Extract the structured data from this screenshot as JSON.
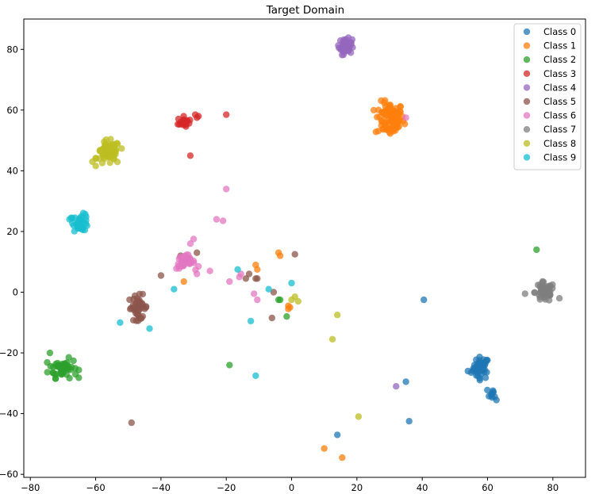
{
  "chart_data": {
    "type": "scatter",
    "title": "Target Domain",
    "xlabel": "",
    "ylabel": "",
    "xlim": [
      -82,
      90
    ],
    "ylim": [
      -61,
      90
    ],
    "xticks": [
      -80,
      -60,
      -40,
      -20,
      0,
      20,
      40,
      60,
      80
    ],
    "yticks": [
      -60,
      -40,
      -20,
      0,
      20,
      40,
      60,
      80
    ],
    "xtick_labels": [
      "−80",
      "−60",
      "−40",
      "−20",
      "0",
      "20",
      "40",
      "60",
      "80"
    ],
    "ytick_labels": [
      "−60",
      "−40",
      "−20",
      "0",
      "20",
      "40",
      "60",
      "80"
    ],
    "grid": false,
    "legend_position": "top-right",
    "series": [
      {
        "name": "Class 0",
        "color": "#1f77b4",
        "clusters": [
          {
            "cx": 58,
            "cy": -25,
            "sx": 1.2,
            "sy": 1.8,
            "n": 45
          },
          {
            "cx": 62,
            "cy": -33.5,
            "sx": 1.0,
            "sy": 1.0,
            "n": 10
          }
        ],
        "points": [
          [
            54,
            -26
          ],
          [
            55,
            -26.5
          ],
          [
            40.5,
            -2.5
          ],
          [
            35,
            -29.5
          ],
          [
            36,
            -42.5
          ],
          [
            14,
            -47
          ]
        ]
      },
      {
        "name": "Class 1",
        "color": "#ff7f0e",
        "clusters": [
          {
            "cx": 30,
            "cy": 57,
            "sx": 2.2,
            "sy": 2.8,
            "n": 90
          }
        ],
        "points": [
          [
            -33,
            3.5
          ],
          [
            -11,
            9
          ],
          [
            -10.5,
            7.5
          ],
          [
            -4,
            13
          ],
          [
            -3.5,
            12
          ],
          [
            -1,
            -4.5
          ],
          [
            -1,
            -5.5
          ],
          [
            -0.5,
            -5
          ],
          [
            10,
            -51.5
          ],
          [
            15.5,
            -54.5
          ]
        ]
      },
      {
        "name": "Class 2",
        "color": "#2ca02c",
        "clusters": [
          {
            "cx": -70,
            "cy": -25,
            "sx": 2.2,
            "sy": 1.6,
            "n": 55
          }
        ],
        "points": [
          [
            -74,
            -20
          ],
          [
            -19,
            -24
          ],
          [
            75,
            14
          ],
          [
            -4,
            -2.5
          ],
          [
            -3.5,
            -2.5
          ],
          [
            -1.5,
            -8
          ]
        ]
      },
      {
        "name": "Class 3",
        "color": "#d62728",
        "clusters": [
          {
            "cx": -33,
            "cy": 56,
            "sx": 0.9,
            "sy": 0.9,
            "n": 20
          }
        ],
        "points": [
          [
            -29.5,
            58.5
          ],
          [
            -29,
            57.5
          ],
          [
            -28.5,
            58
          ],
          [
            -20,
            58.5
          ],
          [
            -31,
            45
          ]
        ]
      },
      {
        "name": "Class 4",
        "color": "#9467bd",
        "clusters": [
          {
            "cx": 16.5,
            "cy": 81,
            "sx": 1.0,
            "sy": 1.3,
            "n": 45
          }
        ],
        "points": [
          [
            32,
            -31
          ]
        ]
      },
      {
        "name": "Class 5",
        "color": "#8c564b",
        "clusters": [
          {
            "cx": -47,
            "cy": -5,
            "sx": 1.5,
            "sy": 2.0,
            "n": 45
          }
        ],
        "points": [
          [
            -40,
            5.5
          ],
          [
            -34,
            12
          ],
          [
            -29,
            13
          ],
          [
            -14,
            4.5
          ],
          [
            -13,
            6
          ],
          [
            -11,
            4.5
          ],
          [
            -10.5,
            4.5
          ],
          [
            -6,
            -8.5
          ],
          [
            -5.5,
            0
          ],
          [
            1,
            12.5
          ],
          [
            -49,
            -43
          ]
        ]
      },
      {
        "name": "Class 6",
        "color": "#e377c2",
        "clusters": [
          {
            "cx": -32.5,
            "cy": 10,
            "sx": 1.4,
            "sy": 1.2,
            "n": 40
          }
        ],
        "points": [
          [
            -31,
            16
          ],
          [
            -30,
            17.5
          ],
          [
            -28.5,
            8.5
          ],
          [
            -29,
            6
          ],
          [
            -25,
            7
          ],
          [
            -23,
            24
          ],
          [
            -21,
            23.5
          ],
          [
            -20,
            34
          ],
          [
            -19,
            3.5
          ],
          [
            -16,
            5
          ],
          [
            -15.5,
            6
          ],
          [
            -11.5,
            -0.5
          ],
          [
            -10.5,
            -2.5
          ],
          [
            35,
            57.5
          ]
        ]
      },
      {
        "name": "Class 7",
        "color": "#7f7f7f",
        "clusters": [
          {
            "cx": 77.5,
            "cy": 0,
            "sx": 1.5,
            "sy": 1.6,
            "n": 55
          }
        ],
        "points": [
          [
            71.5,
            -0.5
          ],
          [
            82,
            -2
          ]
        ]
      },
      {
        "name": "Class 8",
        "color": "#bcbd22",
        "clusters": [
          {
            "cx": -56,
            "cy": 46,
            "sx": 1.8,
            "sy": 2.0,
            "n": 60
          }
        ],
        "points": [
          [
            -61,
            43
          ],
          [
            0,
            -2.5
          ],
          [
            1,
            -1.5
          ],
          [
            2,
            -3
          ],
          [
            14,
            -7.5
          ],
          [
            12.5,
            -15.5
          ],
          [
            20.5,
            -41
          ]
        ]
      },
      {
        "name": "Class 9",
        "color": "#17becf",
        "clusters": [
          {
            "cx": -64.5,
            "cy": 23,
            "sx": 1.2,
            "sy": 1.4,
            "n": 35
          }
        ],
        "points": [
          [
            -67.5,
            24.5
          ],
          [
            -68,
            24
          ],
          [
            -36,
            1
          ],
          [
            -52.5,
            -10
          ],
          [
            -43.5,
            -12
          ],
          [
            -16.5,
            7.5
          ],
          [
            -7,
            1
          ],
          [
            0,
            3
          ],
          [
            -12.5,
            -9.5
          ],
          [
            -11,
            -27.5
          ]
        ]
      }
    ]
  }
}
